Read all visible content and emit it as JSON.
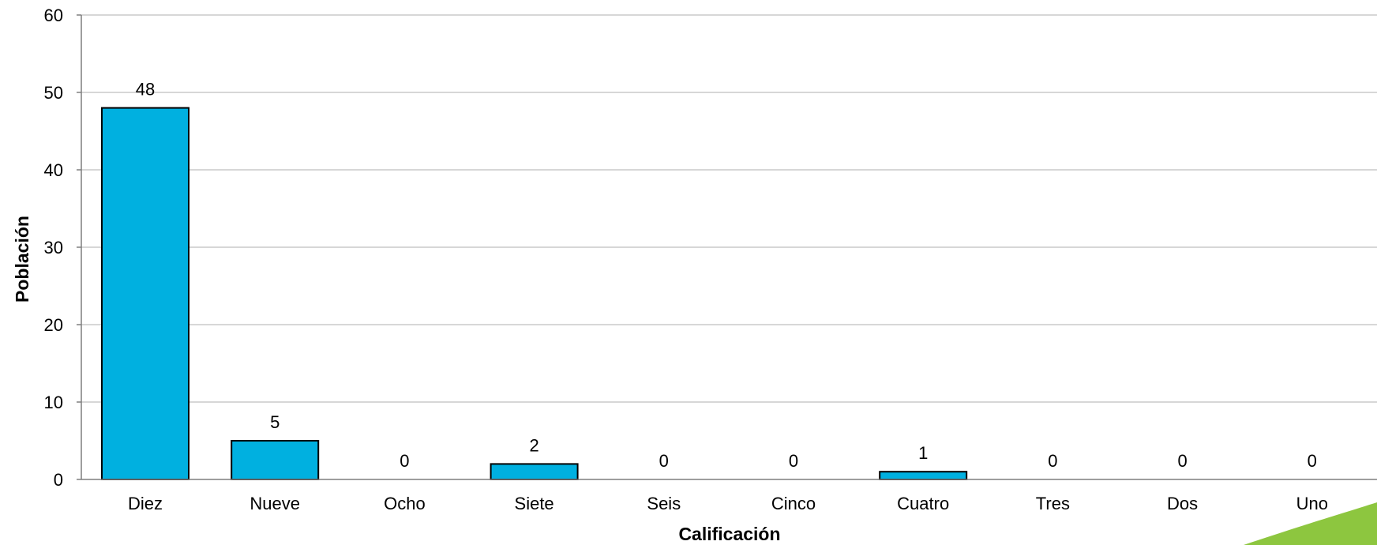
{
  "chart_data": {
    "type": "bar",
    "title": "",
    "xlabel": "Calificación",
    "ylabel": "Población",
    "ylim": [
      0,
      60
    ],
    "yticks": [
      0,
      10,
      20,
      30,
      40,
      50,
      60
    ],
    "grid": true,
    "categories": [
      "Diez",
      "Nueve",
      "Ocho",
      "Siete",
      "Seis",
      "Cinco",
      "Cuatro",
      "Tres",
      "Dos",
      "Uno"
    ],
    "values": [
      48,
      5,
      0,
      2,
      0,
      0,
      1,
      0,
      0,
      0
    ],
    "bar_color": "#00B0E0",
    "bar_edge_color": "#000000",
    "grid_color": "#BFBFBF",
    "decoration_color": "#8DC63F"
  }
}
